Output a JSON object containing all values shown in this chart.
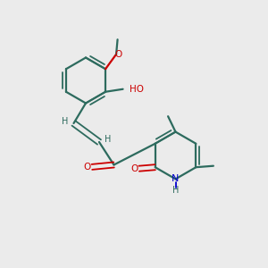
{
  "background_color": "#ebebeb",
  "bond_color": "#2d6b5e",
  "oxygen_color": "#cc0000",
  "nitrogen_color": "#0000cc",
  "figsize": [
    3.0,
    3.0
  ],
  "dpi": 100,
  "xlim": [
    0,
    10
  ],
  "ylim": [
    0,
    10
  ]
}
